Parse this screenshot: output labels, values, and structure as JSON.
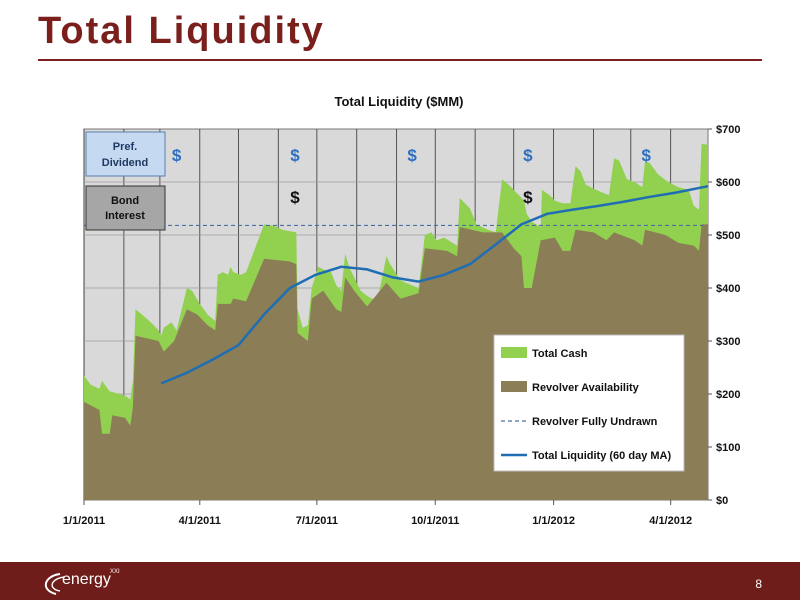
{
  "slide": {
    "title": "Total Liquidity",
    "page_number": "8",
    "logo_text": "energy",
    "logo_sup": "XXI"
  },
  "colors": {
    "brand": "#7a1f1c",
    "footer": "#6f1d1b",
    "plot_bg": "#d9d9d9",
    "cash": "#92d050",
    "revolver": "#8b7d56",
    "ma_line": "#1f6eb4",
    "undrawn_line": "#4a6fa0",
    "dollar": "#2e6fc0"
  },
  "chart_data": {
    "type": "area",
    "title": "Total Liquidity ($MM)",
    "ylim": [
      0,
      700
    ],
    "y_ticks": [
      "$0",
      "$100",
      "$200",
      "$300",
      "$400",
      "$500",
      "$600",
      "$700"
    ],
    "x_tick_labels": [
      "1/1/2011",
      "4/1/2011",
      "7/1/2011",
      "10/1/2011",
      "1/1/2012",
      "4/1/2012"
    ],
    "xlim_days": [
      0,
      485
    ],
    "legend": {
      "position": "lower-right",
      "total_cash": "Total Cash",
      "revolver": "Revolver Availability",
      "undrawn": "Revolver Fully Undrawn",
      "ma": "Total Liquidity (60 day MA)"
    },
    "revolver_fully_undrawn": 518,
    "series": [
      {
        "name": "Total Cash",
        "points": [
          [
            0,
            235
          ],
          [
            5,
            218
          ],
          [
            12,
            210
          ],
          [
            14,
            225
          ],
          [
            20,
            205
          ],
          [
            28,
            200
          ],
          [
            33,
            195
          ],
          [
            36,
            190
          ],
          [
            38,
            225
          ],
          [
            40,
            360
          ],
          [
            45,
            350
          ],
          [
            52,
            335
          ],
          [
            58,
            320
          ],
          [
            60,
            310
          ],
          [
            62,
            325
          ],
          [
            68,
            335
          ],
          [
            72,
            320
          ],
          [
            80,
            400
          ],
          [
            84,
            395
          ],
          [
            90,
            370
          ],
          [
            96,
            350
          ],
          [
            102,
            338
          ],
          [
            104,
            425
          ],
          [
            108,
            430
          ],
          [
            112,
            425
          ],
          [
            114,
            440
          ],
          [
            116,
            430
          ],
          [
            122,
            425
          ],
          [
            126,
            430
          ],
          [
            140,
            520
          ],
          [
            146,
            518
          ],
          [
            150,
            515
          ],
          [
            154,
            510
          ],
          [
            165,
            505
          ],
          [
            166,
            360
          ],
          [
            170,
            325
          ],
          [
            174,
            330
          ],
          [
            177,
            400
          ],
          [
            182,
            440
          ],
          [
            186,
            435
          ],
          [
            192,
            430
          ],
          [
            196,
            405
          ],
          [
            200,
            395
          ],
          [
            203,
            465
          ],
          [
            206,
            440
          ],
          [
            210,
            420
          ],
          [
            215,
            395
          ],
          [
            220,
            385
          ],
          [
            228,
            375
          ],
          [
            235,
            460
          ],
          [
            238,
            445
          ],
          [
            246,
            415
          ],
          [
            250,
            410
          ],
          [
            260,
            400
          ],
          [
            265,
            500
          ],
          [
            270,
            505
          ],
          [
            274,
            490
          ],
          [
            280,
            495
          ],
          [
            290,
            480
          ],
          [
            292,
            570
          ],
          [
            296,
            560
          ],
          [
            300,
            550
          ],
          [
            305,
            520
          ],
          [
            314,
            510
          ],
          [
            320,
            505
          ],
          [
            325,
            605
          ],
          [
            330,
            595
          ],
          [
            334,
            585
          ],
          [
            340,
            570
          ],
          [
            342,
            565
          ],
          [
            344,
            540
          ],
          [
            348,
            525
          ],
          [
            355,
            515
          ],
          [
            356,
            585
          ],
          [
            362,
            575
          ],
          [
            366,
            565
          ],
          [
            372,
            560
          ],
          [
            378,
            560
          ],
          [
            382,
            630
          ],
          [
            386,
            620
          ],
          [
            390,
            595
          ],
          [
            398,
            585
          ],
          [
            408,
            575
          ],
          [
            412,
            645
          ],
          [
            416,
            640
          ],
          [
            422,
            605
          ],
          [
            428,
            600
          ],
          [
            434,
            590
          ],
          [
            436,
            640
          ],
          [
            440,
            635
          ],
          [
            446,
            615
          ],
          [
            454,
            600
          ],
          [
            462,
            590
          ],
          [
            470,
            585
          ],
          [
            474,
            555
          ],
          [
            478,
            548
          ],
          [
            480,
            672
          ],
          [
            485,
            670
          ]
        ]
      },
      {
        "name": "Revolver Availability",
        "points": [
          [
            0,
            185
          ],
          [
            12,
            170
          ],
          [
            14,
            125
          ],
          [
            20,
            125
          ],
          [
            22,
            160
          ],
          [
            32,
            155
          ],
          [
            36,
            140
          ],
          [
            38,
            175
          ],
          [
            40,
            310
          ],
          [
            58,
            300
          ],
          [
            62,
            280
          ],
          [
            70,
            300
          ],
          [
            80,
            360
          ],
          [
            88,
            350
          ],
          [
            96,
            330
          ],
          [
            102,
            320
          ],
          [
            104,
            370
          ],
          [
            114,
            370
          ],
          [
            116,
            380
          ],
          [
            126,
            375
          ],
          [
            140,
            455
          ],
          [
            160,
            450
          ],
          [
            165,
            445
          ],
          [
            166,
            315
          ],
          [
            174,
            300
          ],
          [
            177,
            380
          ],
          [
            186,
            395
          ],
          [
            196,
            360
          ],
          [
            200,
            355
          ],
          [
            203,
            420
          ],
          [
            210,
            395
          ],
          [
            220,
            365
          ],
          [
            235,
            410
          ],
          [
            246,
            380
          ],
          [
            260,
            390
          ],
          [
            265,
            475
          ],
          [
            282,
            470
          ],
          [
            290,
            460
          ],
          [
            292,
            515
          ],
          [
            310,
            505
          ],
          [
            325,
            505
          ],
          [
            334,
            475
          ],
          [
            340,
            460
          ],
          [
            342,
            400
          ],
          [
            348,
            400
          ],
          [
            355,
            490
          ],
          [
            366,
            495
          ],
          [
            372,
            470
          ],
          [
            378,
            470
          ],
          [
            382,
            510
          ],
          [
            396,
            505
          ],
          [
            406,
            490
          ],
          [
            412,
            505
          ],
          [
            428,
            490
          ],
          [
            434,
            480
          ],
          [
            436,
            510
          ],
          [
            452,
            500
          ],
          [
            462,
            485
          ],
          [
            474,
            480
          ],
          [
            478,
            470
          ],
          [
            480,
            520
          ],
          [
            485,
            520
          ]
        ]
      },
      {
        "name": "Total Liquidity (60 day MA)",
        "points": [
          [
            60,
            220
          ],
          [
            80,
            240
          ],
          [
            100,
            265
          ],
          [
            120,
            292
          ],
          [
            140,
            350
          ],
          [
            160,
            400
          ],
          [
            180,
            425
          ],
          [
            200,
            440
          ],
          [
            220,
            435
          ],
          [
            240,
            420
          ],
          [
            260,
            412
          ],
          [
            280,
            425
          ],
          [
            300,
            445
          ],
          [
            320,
            482
          ],
          [
            340,
            520
          ],
          [
            360,
            540
          ],
          [
            380,
            548
          ],
          [
            400,
            555
          ],
          [
            420,
            563
          ],
          [
            440,
            572
          ],
          [
            460,
            580
          ],
          [
            485,
            592
          ]
        ]
      }
    ],
    "dollar_markers": {
      "pref_dividend_days": [
        72,
        164,
        255,
        345,
        437
      ],
      "bond_interest_days": [
        164,
        345
      ]
    },
    "annotations": {
      "pref_dividend": "Pref. Dividend",
      "bond_interest": "Bond Interest",
      "dollar": "$"
    }
  }
}
